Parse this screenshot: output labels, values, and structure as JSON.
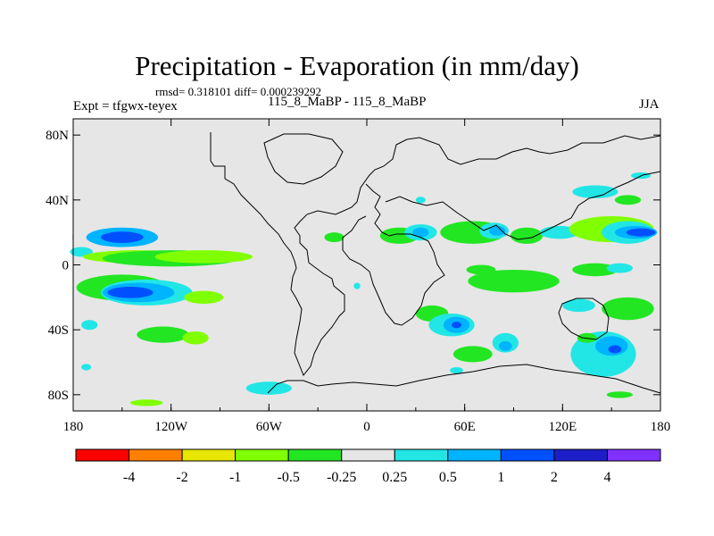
{
  "chart_data": {
    "type": "heatmap",
    "title": "Precipitation - Evaporation (in mm/day)",
    "stats": "rmsd= 0.318101 diff= 0.000239292",
    "experiment": "Expt = tfgwx-teyex",
    "case": "115_8_MaBP - 115_8_MaBP",
    "season": "JJA",
    "x_range": [
      -180,
      180
    ],
    "y_range": [
      -90,
      90
    ],
    "x_ticks": [
      {
        "value": -180,
        "label": "180"
      },
      {
        "value": -120,
        "label": "120W"
      },
      {
        "value": -60,
        "label": "60W"
      },
      {
        "value": 0,
        "label": "0"
      },
      {
        "value": 60,
        "label": "60E"
      },
      {
        "value": 120,
        "label": "120E"
      },
      {
        "value": 180,
        "label": "180"
      }
    ],
    "y_ticks": [
      {
        "value": 80,
        "label": "80N"
      },
      {
        "value": 40,
        "label": "40N"
      },
      {
        "value": 0,
        "label": "0"
      },
      {
        "value": -40,
        "label": "40S"
      },
      {
        "value": -80,
        "label": "80S"
      }
    ],
    "colorbar": {
      "levels": [
        "-4",
        "-2",
        "-1",
        "-0.5",
        "-0.25",
        "0.25",
        "0.5",
        "1",
        "2",
        "4"
      ],
      "colors": [
        "#ff0000",
        "#ff8000",
        "#e6e600",
        "#80ff00",
        "#22e622",
        "#e6e6e6",
        "#22e6e6",
        "#00b4ff",
        "#0050ff",
        "#1e1ec8",
        "#8030ff"
      ]
    },
    "background_color": "#e6e6e6",
    "anomaly_regions": [
      {
        "bin": 5,
        "lon": -155,
        "lat": 17,
        "dlon": 26,
        "dlat": 8
      },
      {
        "bin": 7,
        "lon": -150,
        "lat": 17,
        "dlon": 22,
        "dlat": 6
      },
      {
        "bin": 8,
        "lon": -150,
        "lat": 17,
        "dlon": 13,
        "dlat": 3.5
      },
      {
        "bin": 6,
        "lon": -175,
        "lat": 8,
        "dlon": 7,
        "dlat": 3
      },
      {
        "bin": 3,
        "lon": -140,
        "lat": 5,
        "dlon": 34,
        "dlat": 4
      },
      {
        "bin": 4,
        "lon": -120,
        "lat": 4,
        "dlon": 42,
        "dlat": 5
      },
      {
        "bin": 3,
        "lon": -100,
        "lat": 5,
        "dlon": 30,
        "dlat": 4
      },
      {
        "bin": 4,
        "lon": -150,
        "lat": -14,
        "dlon": 28,
        "dlat": 8
      },
      {
        "bin": 6,
        "lon": -135,
        "lat": -17,
        "dlon": 28,
        "dlat": 8
      },
      {
        "bin": 7,
        "lon": -140,
        "lat": -17,
        "dlon": 22,
        "dlat": 6
      },
      {
        "bin": 8,
        "lon": -145,
        "lat": -17,
        "dlon": 14,
        "dlat": 3.5
      },
      {
        "bin": 3,
        "lon": -100,
        "lat": -20,
        "dlon": 12,
        "dlat": 4
      },
      {
        "bin": 4,
        "lon": -125,
        "lat": -43,
        "dlon": 16,
        "dlat": 5
      },
      {
        "bin": 3,
        "lon": -105,
        "lat": -45,
        "dlon": 8,
        "dlat": 4
      },
      {
        "bin": 6,
        "lon": -170,
        "lat": -37,
        "dlon": 5,
        "dlat": 3
      },
      {
        "bin": 6,
        "lon": -172,
        "lat": -63,
        "dlon": 3,
        "dlat": 2
      },
      {
        "bin": 6,
        "lon": -60,
        "lat": -76,
        "dlon": 14,
        "dlat": 4
      },
      {
        "bin": 3,
        "lon": -135,
        "lat": -85,
        "dlon": 10,
        "dlat": 2
      },
      {
        "bin": 4,
        "lon": 20,
        "lat": 18,
        "dlon": 12,
        "dlat": 5
      },
      {
        "bin": 6,
        "lon": 33,
        "lat": 20,
        "dlon": 10,
        "dlat": 5
      },
      {
        "bin": 7,
        "lon": 33,
        "lat": 20,
        "dlon": 5,
        "dlat": 3
      },
      {
        "bin": 4,
        "lon": 65,
        "lat": 20,
        "dlon": 20,
        "dlat": 7
      },
      {
        "bin": 6,
        "lon": 78,
        "lat": 21,
        "dlon": 9,
        "dlat": 5
      },
      {
        "bin": 7,
        "lon": 80,
        "lat": 21,
        "dlon": 5,
        "dlat": 3
      },
      {
        "bin": 4,
        "lon": 98,
        "lat": 18,
        "dlon": 10,
        "dlat": 5
      },
      {
        "bin": 6,
        "lon": 118,
        "lat": 20,
        "dlon": 12,
        "dlat": 4
      },
      {
        "bin": 3,
        "lon": 150,
        "lat": 22,
        "dlon": 26,
        "dlat": 8
      },
      {
        "bin": 6,
        "lon": 160,
        "lat": 20,
        "dlon": 16,
        "dlat": 7
      },
      {
        "bin": 7,
        "lon": 165,
        "lat": 20,
        "dlon": 13,
        "dlat": 4
      },
      {
        "bin": 8,
        "lon": 168,
        "lat": 20,
        "dlon": 9,
        "dlat": 2.5
      },
      {
        "bin": 6,
        "lon": 140,
        "lat": 45,
        "dlon": 14,
        "dlat": 4
      },
      {
        "bin": 4,
        "lon": 160,
        "lat": 40,
        "dlon": 8,
        "dlat": 3
      },
      {
        "bin": 6,
        "lon": 168,
        "lat": 55,
        "dlon": 6,
        "dlat": 2
      },
      {
        "bin": 6,
        "lon": 33,
        "lat": 40,
        "dlon": 3,
        "dlat": 2
      },
      {
        "bin": 4,
        "lon": 90,
        "lat": -10,
        "dlon": 28,
        "dlat": 7
      },
      {
        "bin": 4,
        "lon": 70,
        "lat": -3,
        "dlon": 9,
        "dlat": 3
      },
      {
        "bin": 4,
        "lon": 140,
        "lat": -3,
        "dlon": 14,
        "dlat": 4
      },
      {
        "bin": 6,
        "lon": 155,
        "lat": -2,
        "dlon": 8,
        "dlat": 3
      },
      {
        "bin": 4,
        "lon": 160,
        "lat": -27,
        "dlon": 16,
        "dlat": 7
      },
      {
        "bin": 6,
        "lon": 130,
        "lat": -25,
        "dlon": 10,
        "dlat": 4
      },
      {
        "bin": 4,
        "lon": 40,
        "lat": -30,
        "dlon": 10,
        "dlat": 5
      },
      {
        "bin": 6,
        "lon": 52,
        "lat": -37,
        "dlon": 14,
        "dlat": 7
      },
      {
        "bin": 7,
        "lon": 55,
        "lat": -37,
        "dlon": 8,
        "dlat": 5
      },
      {
        "bin": 8,
        "lon": 55,
        "lat": -37,
        "dlon": 3,
        "dlat": 2
      },
      {
        "bin": 4,
        "lon": 65,
        "lat": -55,
        "dlon": 12,
        "dlat": 5
      },
      {
        "bin": 6,
        "lon": 85,
        "lat": -48,
        "dlon": 8,
        "dlat": 6
      },
      {
        "bin": 7,
        "lon": 85,
        "lat": -50,
        "dlon": 4,
        "dlat": 3
      },
      {
        "bin": 6,
        "lon": 145,
        "lat": -55,
        "dlon": 20,
        "dlat": 14
      },
      {
        "bin": 7,
        "lon": 150,
        "lat": -50,
        "dlon": 10,
        "dlat": 6
      },
      {
        "bin": 8,
        "lon": 152,
        "lat": -52,
        "dlon": 4,
        "dlat": 2.5
      },
      {
        "bin": 4,
        "lon": 135,
        "lat": -45,
        "dlon": 6,
        "dlat": 3
      },
      {
        "bin": 4,
        "lon": 155,
        "lat": -80,
        "dlon": 8,
        "dlat": 2
      },
      {
        "bin": 6,
        "lon": 55,
        "lat": -65,
        "dlon": 4,
        "dlat": 2
      },
      {
        "bin": 4,
        "lon": -20,
        "lat": 17,
        "dlon": 6,
        "dlat": 3
      },
      {
        "bin": 6,
        "lon": -6,
        "lat": -13,
        "dlon": 2,
        "dlat": 2
      }
    ]
  }
}
